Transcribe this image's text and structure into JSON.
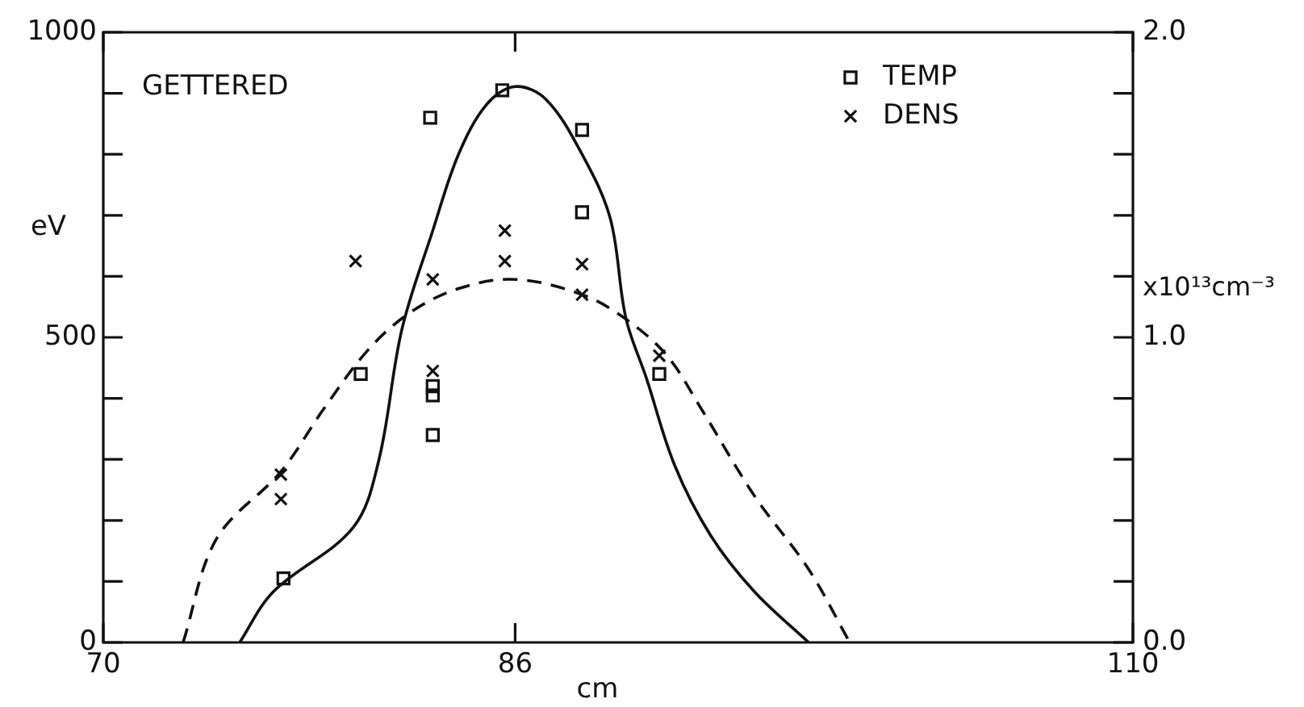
{
  "chart_data": {
    "type": "scatter",
    "xlabel": "cm",
    "ylabel": "eV",
    "y2label": "x10¹³cm⁻³",
    "annotations": [
      "GETTERED"
    ],
    "legend": "top right",
    "grid": false,
    "xlim": [
      70,
      110
    ],
    "xticks": [
      70,
      86,
      110
    ],
    "ylim": [
      0,
      1000
    ],
    "yticks": [
      0,
      {
        "value": 100,
        "label": null
      },
      {
        "value": 200,
        "label": null
      },
      {
        "value": 300,
        "label": null
      },
      {
        "value": 400,
        "label": null
      },
      500,
      {
        "value": 600,
        "label": null
      },
      {
        "value": 700,
        "label": null
      },
      {
        "value": 800,
        "label": null
      },
      {
        "value": 900,
        "label": null
      },
      1000
    ],
    "y2lim": [
      0,
      2
    ],
    "y2ticks": [
      {
        "value": 0,
        "label": "0.0"
      },
      {
        "value": 0.2,
        "label": null
      },
      {
        "value": 0.4,
        "label": null
      },
      {
        "value": 0.6,
        "label": null
      },
      {
        "value": 0.8,
        "label": null
      },
      {
        "value": 1,
        "label": "1.0"
      },
      {
        "value": 1.2,
        "label": null
      },
      {
        "value": 1.4,
        "label": null
      },
      {
        "value": 1.6,
        "label": null
      },
      {
        "value": 1.8,
        "label": null
      },
      {
        "value": 2,
        "label": "2.0"
      }
    ],
    "series": [
      {
        "name": "TEMP",
        "type": "scatter",
        "marker": "square",
        "color": "#111111",
        "x": [
          77,
          80,
          82.7,
          82.8,
          82.8,
          82.8,
          85.5,
          88.6,
          88.6,
          91.6
        ],
        "values": [
          105,
          440,
          860,
          420,
          405,
          340,
          905,
          840,
          705,
          440
        ]
      },
      {
        "name": "DENS",
        "type": "scatter",
        "marker": "cross",
        "axis": "y2",
        "color": "#111111",
        "x": [
          76.9,
          76.9,
          79.8,
          82.8,
          82.8,
          85.6,
          85.6,
          88.6,
          88.6,
          91.6
        ],
        "values": [
          0.55,
          0.47,
          1.25,
          1.19,
          0.89,
          1.35,
          1.25,
          1.24,
          1.14,
          0.94
        ]
      },
      {
        "type": "line",
        "line_style": "solid",
        "color": "#111111",
        "x": [
          75.3,
          76.6,
          79.7,
          80.7,
          81.6,
          82.8,
          83.8,
          84.9,
          86,
          87.2,
          88.6,
          89.7,
          90.3,
          91.1,
          92.2,
          93.6,
          95.3,
          97.4
        ],
        "values": [
          0,
          83,
          188,
          298,
          513,
          675,
          800,
          882,
          911,
          890,
          800,
          694,
          532,
          433,
          290,
          175,
          83,
          0
        ]
      },
      {
        "type": "line",
        "line_style": "dashed",
        "axis": "y2",
        "color": "#111111",
        "x": [
          73.1,
          74.4,
          76.9,
          78.6,
          80.3,
          81.9,
          83.8,
          86,
          88.6,
          90.3,
          91.9,
          93.2,
          95.3,
          97.4,
          99
        ],
        "values": [
          0,
          0.34,
          0.56,
          0.77,
          0.96,
          1.08,
          1.16,
          1.19,
          1.14,
          1.06,
          0.94,
          0.77,
          0.48,
          0.24,
          0
        ]
      }
    ]
  }
}
